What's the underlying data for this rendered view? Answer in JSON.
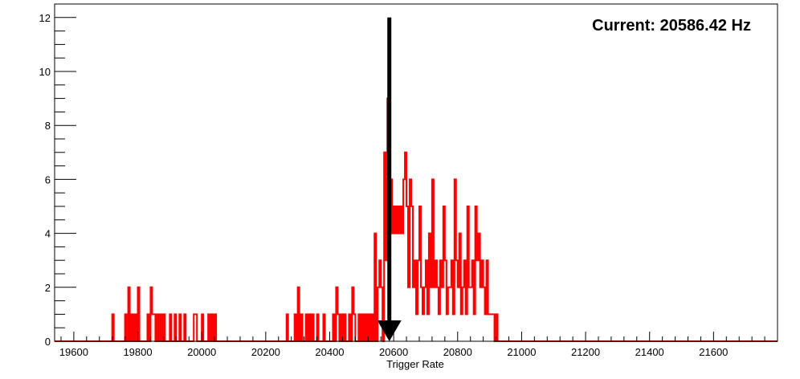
{
  "chart_data": {
    "type": "histogram",
    "title": "",
    "xlabel": "Trigger Rate",
    "ylabel": "",
    "xlim": [
      19540,
      21800
    ],
    "ylim": [
      0,
      12.5
    ],
    "x_ticks": [
      19600,
      19800,
      20000,
      20200,
      20400,
      20600,
      20800,
      21000,
      21200,
      21400,
      21600
    ],
    "y_ticks": [
      0,
      2,
      4,
      6,
      8,
      10,
      12
    ],
    "grid": false,
    "bin_width": 5,
    "series": [
      {
        "color": "#ff0000",
        "bins": [
          [
            19720,
            1
          ],
          [
            19760,
            1
          ],
          [
            19770,
            2
          ],
          [
            19780,
            1
          ],
          [
            19790,
            1
          ],
          [
            19800,
            2
          ],
          [
            19830,
            1
          ],
          [
            19840,
            2
          ],
          [
            19845,
            1
          ],
          [
            19850,
            1
          ],
          [
            19860,
            1
          ],
          [
            19870,
            1
          ],
          [
            19880,
            1
          ],
          [
            19900,
            1
          ],
          [
            19915,
            1
          ],
          [
            19930,
            1
          ],
          [
            19945,
            1
          ],
          [
            19975,
            1
          ],
          [
            19980,
            1
          ],
          [
            20000,
            1
          ],
          [
            20020,
            1
          ],
          [
            20030,
            1
          ],
          [
            20040,
            1
          ],
          [
            20265,
            1
          ],
          [
            20290,
            1
          ],
          [
            20300,
            2
          ],
          [
            20310,
            1
          ],
          [
            20325,
            1
          ],
          [
            20335,
            1
          ],
          [
            20345,
            1
          ],
          [
            20360,
            1
          ],
          [
            20380,
            1
          ],
          [
            20410,
            1
          ],
          [
            20420,
            2
          ],
          [
            20425,
            1
          ],
          [
            20435,
            1
          ],
          [
            20445,
            1
          ],
          [
            20460,
            1
          ],
          [
            20470,
            2
          ],
          [
            20475,
            1
          ],
          [
            20490,
            1
          ],
          [
            20500,
            1
          ],
          [
            20510,
            1
          ],
          [
            20520,
            1
          ],
          [
            20530,
            1
          ],
          [
            20540,
            4
          ],
          [
            20550,
            2
          ],
          [
            20555,
            3
          ],
          [
            20560,
            2
          ],
          [
            20570,
            7
          ],
          [
            20575,
            3
          ],
          [
            20580,
            9
          ],
          [
            20585,
            4
          ],
          [
            20590,
            6
          ],
          [
            20595,
            4
          ],
          [
            20600,
            5
          ],
          [
            20605,
            4
          ],
          [
            20610,
            5
          ],
          [
            20615,
            4
          ],
          [
            20620,
            5
          ],
          [
            20625,
            4
          ],
          [
            20630,
            6
          ],
          [
            20635,
            7
          ],
          [
            20640,
            5
          ],
          [
            20645,
            2
          ],
          [
            20650,
            6
          ],
          [
            20655,
            5
          ],
          [
            20660,
            2
          ],
          [
            20665,
            3
          ],
          [
            20670,
            1
          ],
          [
            20675,
            3
          ],
          [
            20680,
            5
          ],
          [
            20685,
            2
          ],
          [
            20690,
            1
          ],
          [
            20695,
            2
          ],
          [
            20700,
            3
          ],
          [
            20705,
            1
          ],
          [
            20710,
            4
          ],
          [
            20715,
            2
          ],
          [
            20720,
            6
          ],
          [
            20725,
            2
          ],
          [
            20730,
            3
          ],
          [
            20735,
            2
          ],
          [
            20740,
            1
          ],
          [
            20745,
            3
          ],
          [
            20750,
            2
          ],
          [
            20755,
            5
          ],
          [
            20760,
            3
          ],
          [
            20765,
            1
          ],
          [
            20770,
            2
          ],
          [
            20775,
            2
          ],
          [
            20780,
            3
          ],
          [
            20785,
            1
          ],
          [
            20790,
            6
          ],
          [
            20795,
            3
          ],
          [
            20800,
            2
          ],
          [
            20805,
            4
          ],
          [
            20810,
            1
          ],
          [
            20815,
            2
          ],
          [
            20820,
            3
          ],
          [
            20825,
            1
          ],
          [
            20830,
            5
          ],
          [
            20835,
            2
          ],
          [
            20840,
            2
          ],
          [
            20845,
            3
          ],
          [
            20850,
            1
          ],
          [
            20855,
            5
          ],
          [
            20860,
            3
          ],
          [
            20865,
            4
          ],
          [
            20870,
            2
          ],
          [
            20875,
            3
          ],
          [
            20880,
            2
          ],
          [
            20885,
            1
          ],
          [
            20890,
            3
          ],
          [
            20895,
            1
          ],
          [
            20900,
            1
          ],
          [
            20905,
            1
          ],
          [
            20910,
            1
          ],
          [
            20920,
            1
          ]
        ]
      }
    ],
    "annotations": [
      {
        "kind": "arrow",
        "x": 20586.42,
        "from_y": 12,
        "to_y": 0,
        "color": "#000000"
      },
      {
        "kind": "text",
        "text": "Current: 20586.42 Hz",
        "position": "top-right"
      }
    ]
  }
}
